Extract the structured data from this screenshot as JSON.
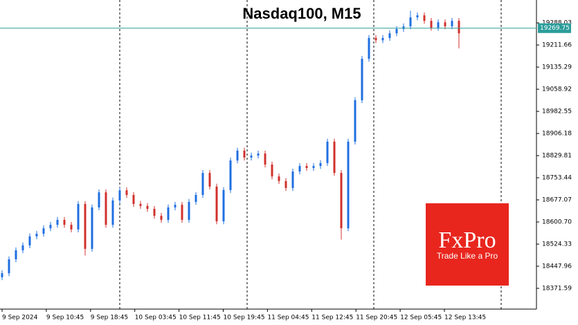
{
  "chart_data": {
    "type": "ohlc",
    "title": "Nasdaq100, M15",
    "open": [
      18410,
      18424,
      18472,
      18503,
      18520,
      18551,
      18560,
      18579,
      18591,
      18608,
      18591,
      18575,
      18663,
      18508,
      18651,
      18703,
      18591,
      18675,
      18710,
      18694,
      18663,
      18656,
      18646,
      18622,
      18608,
      18651,
      18660,
      18608,
      18670,
      18694,
      18770,
      18723,
      18603,
      18711,
      18813,
      18847,
      18823,
      18830,
      18837,
      18799,
      18758,
      18742,
      18718,
      18775,
      18794,
      18787,
      18794,
      18804,
      18878,
      18770,
      18579,
      18878,
      19021,
      19164,
      19236,
      19228,
      19236,
      19252,
      19267,
      19276,
      19307,
      19314,
      19295,
      19271,
      19290,
      19276,
      19295
    ],
    "high": [
      18434,
      18482,
      18513,
      18530,
      18561,
      18570,
      18589,
      18601,
      18618,
      18618,
      18601,
      18673,
      18673,
      18661,
      18713,
      18713,
      18685,
      18720,
      18720,
      18704,
      18673,
      18666,
      18656,
      18632,
      18661,
      18670,
      18670,
      18680,
      18704,
      18780,
      18780,
      18733,
      18721,
      18823,
      18857,
      18857,
      18840,
      18847,
      18847,
      18809,
      18768,
      18752,
      18785,
      18804,
      18804,
      18804,
      18814,
      18888,
      18888,
      18780,
      18888,
      19031,
      19174,
      19246,
      19246,
      19246,
      19262,
      19277,
      19286,
      19330,
      19324,
      19324,
      19305,
      19300,
      19300,
      19305,
      19305
    ],
    "low": [
      18400,
      18414,
      18462,
      18493,
      18510,
      18541,
      18550,
      18569,
      18581,
      18581,
      18565,
      18565,
      18485,
      18498,
      18641,
      18581,
      18581,
      18665,
      18684,
      18653,
      18646,
      18636,
      18612,
      18598,
      18598,
      18641,
      18598,
      18598,
      18660,
      18684,
      18713,
      18593,
      18593,
      18701,
      18803,
      18813,
      18813,
      18820,
      18789,
      18748,
      18732,
      18708,
      18708,
      18765,
      18777,
      18777,
      18784,
      18794,
      18760,
      18540,
      18569,
      18868,
      19011,
      19154,
      19218,
      19218,
      19226,
      19242,
      19257,
      19266,
      19297,
      19285,
      19261,
      19261,
      19266,
      19266,
      19200
    ],
    "close": [
      18424,
      18472,
      18503,
      18520,
      18551,
      18560,
      18579,
      18591,
      18608,
      18591,
      18575,
      18663,
      18508,
      18651,
      18703,
      18591,
      18675,
      18710,
      18694,
      18663,
      18656,
      18646,
      18622,
      18608,
      18651,
      18660,
      18608,
      18670,
      18694,
      18770,
      18723,
      18603,
      18711,
      18813,
      18847,
      18823,
      18830,
      18837,
      18799,
      18758,
      18742,
      18718,
      18775,
      18794,
      18787,
      18794,
      18804,
      18878,
      18770,
      18579,
      18878,
      19021,
      19164,
      19236,
      19228,
      19236,
      19252,
      19267,
      19276,
      19307,
      19314,
      19295,
      19271,
      19290,
      19276,
      19295,
      19252
    ],
    "up_color": "#1f6fe0",
    "down_color": "#d0312d",
    "ylim": [
      18300,
      19367
    ],
    "yticks": [
      19288.03,
      19211.66,
      19135.29,
      19058.92,
      18982.55,
      18906.18,
      18829.81,
      18753.44,
      18677.07,
      {
        "value": 18600.7,
        "label": "18600.70"
      },
      18524.33,
      18447.96,
      18371.59
    ],
    "current_price": 19269.75,
    "current_price_color": "#2a9d9a",
    "x_labels": [
      "9 Sep 2024",
      "9 Sep 10:45",
      "9 Sep 18:45",
      "10 Sep 03:45",
      "10 Sep 11:45",
      "10 Sep 19:45",
      "11 Sep 04:45",
      "11 Sep 12:45",
      "11 Sep 20:45",
      "12 Sep 05:45",
      "12 Sep 13:45"
    ],
    "logo": {
      "name": "FxPro",
      "tagline": "Trade Like a Pro"
    }
  }
}
